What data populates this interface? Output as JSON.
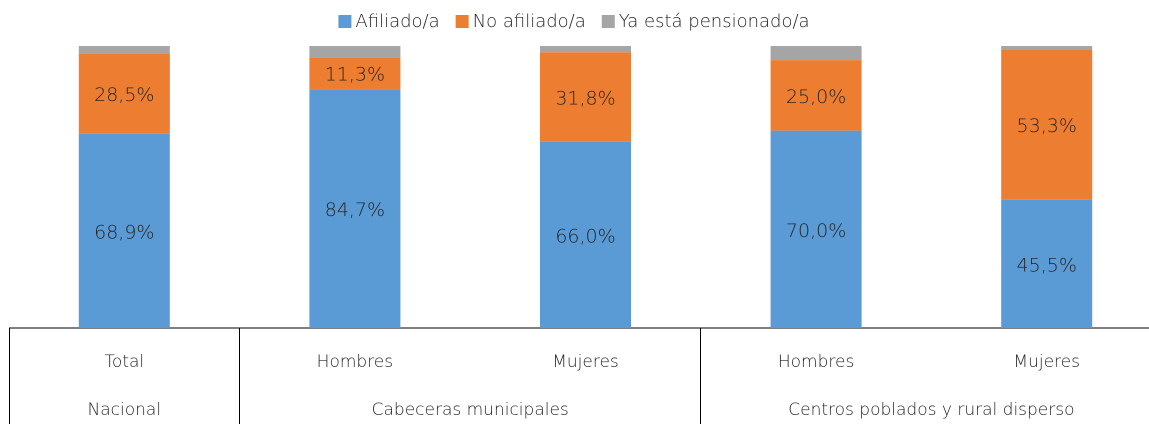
{
  "chart_data": {
    "type": "stacked_bar",
    "groups": [
      {
        "name": "Nacional",
        "categories": [
          "Total"
        ]
      },
      {
        "name": "Cabeceras municipales",
        "categories": [
          "Hombres",
          "Mujeres"
        ]
      },
      {
        "name": "Centros poblados y rural disperso",
        "categories": [
          "Hombres",
          "Mujeres"
        ]
      }
    ],
    "series": [
      {
        "name": "Afiliado/a",
        "color": "#5b9bd5",
        "values": [
          68.9,
          84.7,
          66.0,
          70.0,
          45.5
        ],
        "value_labels": [
          "68,9%",
          "84,7%",
          "66,0%",
          "70,0%",
          "45,5%"
        ]
      },
      {
        "name": "No afiliado/a",
        "color": "#ed7d31",
        "values": [
          28.5,
          11.3,
          31.8,
          25.0,
          53.3
        ],
        "value_labels": [
          "28,5%",
          "11,3%",
          "31,8%",
          "25,0%",
          "53,3%"
        ]
      },
      {
        "name": "Ya está pensionado/a",
        "color": "#a5a5a5",
        "values": [
          2.6,
          4.0,
          2.2,
          5.0,
          1.2
        ]
      }
    ],
    "ylim": [
      0,
      100
    ],
    "legend": "top"
  }
}
